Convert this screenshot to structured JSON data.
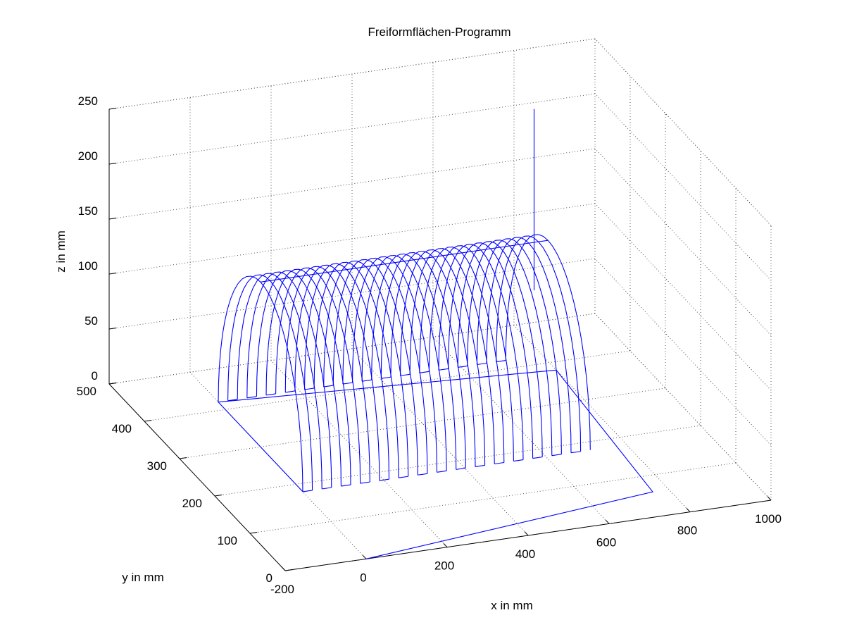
{
  "chart_data": {
    "type": "line",
    "title": "Freiformflächen-Programm",
    "xlabel": "x in mm",
    "ylabel": "y in mm",
    "zlabel": "z in mm",
    "xlim": [
      -200,
      1000
    ],
    "ylim": [
      0,
      500
    ],
    "zlim": [
      0,
      250
    ],
    "x_ticks": [
      "-200",
      "0",
      "200",
      "400",
      "600",
      "800",
      "1000"
    ],
    "y_ticks": [
      "0",
      "100",
      "200",
      "300",
      "400",
      "500"
    ],
    "z_ticks": [
      "0",
      "50",
      "100",
      "150",
      "200",
      "250"
    ],
    "grid": true,
    "line_color": "#0000ff",
    "surface": {
      "description_arches": 31,
      "x_start": 0,
      "x_end": 710,
      "y_center": 300,
      "y_radius": 120,
      "z_height": 150
    },
    "tool_path": [
      {
        "x": 0,
        "y": 0,
        "z": 0
      },
      {
        "x": 760,
        "y": 60,
        "z": 0
      },
      {
        "x": 800,
        "y": 380,
        "z": 0
      },
      {
        "x": 0,
        "y": 420,
        "z": 0
      },
      {
        "x": 0,
        "y": 180,
        "z": 0
      }
    ],
    "vertical_line": {
      "x": 780,
      "y": 420,
      "z_from": 60,
      "z_to": 225
    }
  }
}
